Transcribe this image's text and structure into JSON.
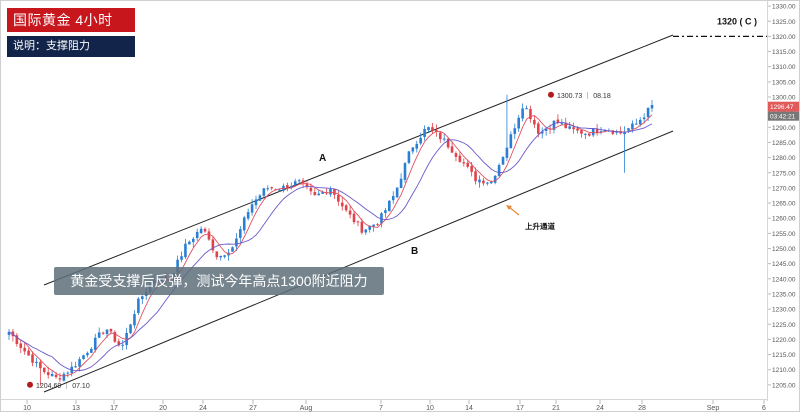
{
  "header": {
    "title": "国际黄金  4小时",
    "subtitle": "说明：支撑阻力"
  },
  "callout": {
    "text": "黄金受支撑后反弹，测试今年高点1300附近阻力"
  },
  "colors": {
    "up_candle": "#2a7fd4",
    "down_candle": "#e0424a",
    "ma_fast": "#e05060",
    "ma_slow": "#6a5acd",
    "channel": "#222222",
    "marker": "#b21c1c",
    "price_tag": "#e05a5a",
    "time_tag": "#777777",
    "arrow": "#e8893a"
  },
  "chart_data": {
    "type": "candlestick",
    "ylim": [
      1200,
      1330
    ],
    "y_ticks": [
      "1205.00",
      "1210.00",
      "1215.00",
      "1220.00",
      "1225.00",
      "1230.00",
      "1235.00",
      "1240.00",
      "1245.00",
      "1250.00",
      "1255.00",
      "1260.00",
      "1265.00",
      "1270.00",
      "1275.00",
      "1280.00",
      "1285.00",
      "1290.00",
      "1295.00",
      "1300.00",
      "1305.00",
      "1310.00",
      "1315.00",
      "1320.00",
      "1325.00",
      "1330.00"
    ],
    "x_ticks": [
      "10",
      "13",
      "17",
      "20",
      "24",
      "27",
      "Aug",
      "7",
      "10",
      "14",
      "17",
      "21",
      "24",
      "28",
      "Sep",
      "6"
    ],
    "annotations": {
      "A": "A",
      "B": "B",
      "target_label": "1320 ( C )",
      "channel_label": "上升通道",
      "low_label": "1204.69 ｜ 07.10",
      "high_label": "1300.73 ｜ 08.18",
      "price_tag": "1296.47",
      "time_tag": "03:42:21"
    },
    "anchor_points": [
      {
        "x": "07.10",
        "y": 1222.5
      },
      {
        "x": "07.10",
        "y": 1216
      },
      {
        "x": "07.10",
        "y": 1210
      },
      {
        "x": "07.11",
        "y": 1207
      },
      {
        "x": "07.12",
        "y": 1211
      },
      {
        "x": "07.13",
        "y": 1217
      },
      {
        "x": "07.14",
        "y": 1224
      },
      {
        "x": "07.17",
        "y": 1217
      },
      {
        "x": "07.18",
        "y": 1232
      },
      {
        "x": "07.19",
        "y": 1240
      },
      {
        "x": "07.20",
        "y": 1240
      },
      {
        "x": "07.21",
        "y": 1251
      },
      {
        "x": "07.24",
        "y": 1257
      },
      {
        "x": "07.25",
        "y": 1247
      },
      {
        "x": "07.26",
        "y": 1251
      },
      {
        "x": "07.27",
        "y": 1264
      },
      {
        "x": "07.28",
        "y": 1270
      },
      {
        "x": "07.31",
        "y": 1270
      },
      {
        "x": "08.01",
        "y": 1272
      },
      {
        "x": "08.02",
        "y": 1267
      },
      {
        "x": "08.03",
        "y": 1270
      },
      {
        "x": "08.04",
        "y": 1262
      },
      {
        "x": "08.07",
        "y": 1256
      },
      {
        "x": "08.08",
        "y": 1259
      },
      {
        "x": "08.09",
        "y": 1268
      },
      {
        "x": "08.10",
        "y": 1283
      },
      {
        "x": "08.11",
        "y": 1290
      },
      {
        "x": "08.14",
        "y": 1286
      },
      {
        "x": "08.15",
        "y": 1280
      },
      {
        "x": "08.16",
        "y": 1273
      },
      {
        "x": "08.17",
        "y": 1272
      },
      {
        "x": "08.17",
        "y": 1284
      },
      {
        "x": "08.18",
        "y": 1298
      },
      {
        "x": "08.21",
        "y": 1288
      },
      {
        "x": "08.22",
        "y": 1292
      },
      {
        "x": "08.23",
        "y": 1289
      },
      {
        "x": "08.24",
        "y": 1288
      },
      {
        "x": "08.25",
        "y": 1290
      },
      {
        "x": "08.28",
        "y": 1288
      },
      {
        "x": "08.28",
        "y": 1291
      },
      {
        "x": "08.29",
        "y": 1297
      }
    ]
  }
}
